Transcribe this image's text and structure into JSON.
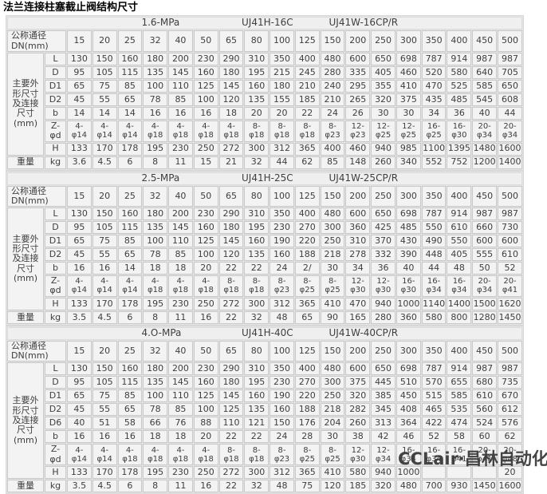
{
  "title": "法兰连接柱塞截止阀结构尺寸",
  "watermark": "CCLair·昌林自动化",
  "colors": {
    "cell_bg": "#f3f3f3",
    "grid": "#c9c9c9",
    "text": "#3e3e3e",
    "title_text": "#000000"
  },
  "table": {
    "dn_label": "公称通径\nDN(mm)",
    "dims_label": "主要外\n形尺寸\n及连接\n尺寸\n(mm)",
    "weight_label": "重量",
    "weight_unit": "kg",
    "dn_columns": [
      "15",
      "20",
      "25",
      "32",
      "40",
      "50",
      "65",
      "80",
      "100",
      "125",
      "150",
      "200",
      "250",
      "300",
      "350",
      "400",
      "450",
      "500"
    ]
  },
  "sections": [
    {
      "pressure": "1.6-MPa",
      "model_h": "UJ41H-16C",
      "model_w": "UJ41W-16CP/R",
      "rows": [
        {
          "label": "L",
          "values": [
            "130",
            "150",
            "160",
            "180",
            "200",
            "230",
            "290",
            "310",
            "350",
            "400",
            "480",
            "600",
            "650",
            "698",
            "787",
            "914",
            "987",
            "987"
          ]
        },
        {
          "label": "D",
          "values": [
            "95",
            "105",
            "115",
            "135",
            "145",
            "160",
            "180",
            "195",
            "215",
            "245",
            "280",
            "335",
            "405",
            "460",
            "520",
            "580",
            "640",
            "705"
          ]
        },
        {
          "label": "D1",
          "values": [
            "65",
            "75",
            "85",
            "100",
            "110",
            "125",
            "145",
            "160",
            "180",
            "210",
            "240",
            "295",
            "355",
            "410",
            "470",
            "525",
            "585",
            "650"
          ]
        },
        {
          "label": "D2",
          "values": [
            "45",
            "55",
            "65",
            "78",
            "85",
            "100",
            "120",
            "135",
            "155",
            "185",
            "210",
            "265",
            "320",
            "375",
            "435",
            "485",
            "545",
            "608"
          ]
        },
        {
          "label": "b",
          "values": [
            "14",
            "14",
            "14",
            "16",
            "16",
            "16",
            "18",
            "20",
            "20",
            "22",
            "24",
            "26",
            "30",
            "30",
            "34",
            "36",
            "40",
            "44"
          ]
        },
        {
          "label": "Z-\nφd",
          "phi": true,
          "values": [
            "4-\nφ14",
            "4-\nφ14",
            "4-\nφ14",
            "4-\nφ18",
            "4-\nφ18",
            "4-\nφ18",
            "4-\nφ18",
            "8-\nφ18",
            "8-\nφ18",
            "8-\nφ18",
            "8-\nφ23",
            "12-\nφ23",
            "12-\nφ25",
            "12-\nφ25",
            "16-\nφ25",
            "16-\nφ30",
            "20-\nφ34",
            "20-\nφ34"
          ]
        },
        {
          "label": "H",
          "values": [
            "133",
            "170",
            "178",
            "195",
            "230",
            "250",
            "272",
            "300",
            "312",
            "365",
            "400",
            "460",
            "940",
            "985",
            "1100",
            "1395",
            "1480",
            "1600"
          ]
        }
      ],
      "weight": [
        "3.6",
        "4.5",
        "6",
        "8",
        "11",
        "15",
        "21",
        "32",
        "44",
        "62",
        "85",
        "148",
        "260",
        "340",
        "552",
        "752",
        "1200",
        "1400"
      ]
    },
    {
      "pressure": "2.5-MPa",
      "model_h": "UJ41H-25C",
      "model_w": "UJ41W-25CP/R",
      "rows": [
        {
          "label": "L",
          "values": [
            "130",
            "150",
            "160",
            "180",
            "200",
            "230",
            "290",
            "310",
            "350",
            "400",
            "480",
            "600",
            "650",
            "698",
            "787",
            "914",
            "987",
            "987"
          ]
        },
        {
          "label": "D",
          "values": [
            "95",
            "105",
            "115",
            "135",
            "145",
            "160",
            "180",
            "195",
            "230",
            "270",
            "300",
            "360",
            "425",
            "485",
            "550",
            "610",
            "660",
            "730"
          ]
        },
        {
          "label": "D1",
          "values": [
            "65",
            "75",
            "85",
            "100",
            "110",
            "125",
            "145",
            "160",
            "190",
            "220",
            "250",
            "310",
            "370",
            "430",
            "490",
            "550",
            "600",
            "600"
          ]
        },
        {
          "label": "D2",
          "values": [
            "45",
            "55",
            "65",
            "78",
            "85",
            "100",
            "120",
            "135",
            "160",
            "188",
            "218",
            "278",
            "332",
            "390",
            "448",
            "405",
            "555",
            "610"
          ]
        },
        {
          "label": "b",
          "values": [
            "16",
            "16",
            "14",
            "18",
            "18",
            "20",
            "22",
            "22",
            "24",
            "2/",
            "30",
            "34",
            "36",
            "40",
            "44",
            "48",
            "50",
            "52"
          ]
        },
        {
          "label": "Z-\nφd",
          "phi": true,
          "values": [
            "4-\nφ14",
            "4-\nφ14",
            "4-\nφ14",
            "4-\nφ18",
            "4-\nφ18",
            "4-\nφ18",
            "8-φ18",
            "8-\nφ18",
            "8-\nφ23",
            "8-\nφ25",
            "8-\nφ25",
            "12-\nφ30",
            "12-\nφ30",
            "16-\nφ30",
            "16-\nφ34",
            "16-\nφ34",
            "20-\nφ34",
            "20-\nφ41"
          ]
        },
        {
          "label": "H",
          "values": [
            "133",
            "170",
            "178",
            "195",
            "230",
            "250",
            "272",
            "300",
            "312",
            "365",
            "410",
            "470",
            "940",
            "1000",
            "1140",
            "1400",
            "1500",
            "1620"
          ]
        }
      ],
      "weight": [
        "3.5",
        "4.5",
        "6",
        "8",
        "11",
        "16",
        "22",
        "32",
        "48",
        "65",
        "90",
        "165",
        "280",
        "360",
        "580",
        "800",
        "1280",
        "1450"
      ]
    },
    {
      "pressure": "4.O-MPa",
      "model_h": "UJ41H-40C",
      "model_w": "UJ41W-40CP/R",
      "rows": [
        {
          "label": "L",
          "values": [
            "130",
            "150",
            "160",
            "180",
            "200",
            "230",
            "290",
            "310",
            "350",
            "400",
            "480",
            "600",
            "650",
            "698",
            "787",
            "914",
            "987",
            "987"
          ]
        },
        {
          "label": "D",
          "values": [
            "95",
            "105",
            "115",
            "135",
            "145",
            "160",
            "180",
            "195",
            "230",
            "270",
            "300",
            "375",
            "445",
            "510",
            "570",
            "655",
            "680",
            "735"
          ]
        },
        {
          "label": "D1",
          "values": [
            "65",
            "75",
            "85",
            "100",
            "110",
            "125",
            "145",
            "160",
            "190",
            "220",
            "250",
            "320",
            "385",
            "450",
            "515",
            "585",
            "610",
            "670"
          ]
        },
        {
          "label": "D2",
          "values": [
            "45",
            "55",
            "65",
            "78",
            "85",
            "100",
            "125",
            "135",
            "160",
            "188",
            "218",
            "282",
            "345",
            "408",
            "465",
            "535",
            "560",
            "612"
          ]
        },
        {
          "label": "D6",
          "values": [
            "40",
            "51",
            "58",
            "66",
            "76",
            "88",
            "110",
            "121",
            "150",
            "176",
            "204",
            "260",
            "313",
            "364",
            "422",
            "474",
            "524",
            "576"
          ]
        },
        {
          "label": "b",
          "values": [
            "16",
            "16",
            "16",
            "18",
            "18",
            "20",
            "22",
            "22",
            "24",
            "28",
            "30",
            "38",
            "42",
            "46",
            "52",
            "58",
            "60",
            "62"
          ]
        },
        {
          "label": "Z-\nφd",
          "phi": true,
          "values": [
            "4-\nφ14",
            "4-\nφ14",
            "4-\nφ18",
            "4-\nφ18",
            "4-\nφ18",
            "4-\nφ18",
            "8-\nφ18",
            "8-\nφ18",
            "8-\nφ23",
            "8-\nφ25",
            "8-\nφ25",
            "12-\nφ30",
            "12-\nφ34",
            "16-\nφ34",
            "16-\nφ34",
            "16-\nφ41",
            "20-\nφ41",
            "20-\nφ48"
          ]
        },
        {
          "label": "H",
          "values": [
            "133",
            "170",
            "178",
            "195",
            "230",
            "250",
            "272",
            "300",
            "312",
            "365",
            "410",
            "580",
            "940",
            "1000",
            "",
            "",
            "",
            "20"
          ]
        }
      ],
      "weight": [
        "3.5",
        "4.5",
        "6",
        "8",
        "11",
        "16",
        "22",
        "32",
        "48",
        "75",
        "120",
        "185",
        "320",
        "480",
        "700",
        "930",
        "1450",
        "1600"
      ]
    }
  ]
}
